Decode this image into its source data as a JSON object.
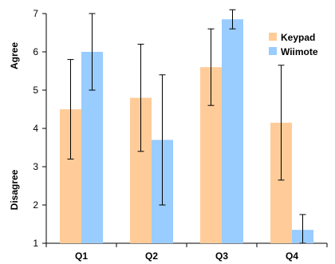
{
  "chart_data": {
    "type": "bar",
    "categories": [
      "Q1",
      "Q2",
      "Q3",
      "Q4"
    ],
    "series": [
      {
        "name": "Keypad",
        "color": "#ffcc99",
        "values": [
          4.5,
          4.8,
          5.6,
          4.15
        ],
        "error_low": [
          3.2,
          3.4,
          4.6,
          2.65
        ],
        "error_high": [
          5.8,
          6.2,
          6.6,
          5.65
        ]
      },
      {
        "name": "Wiimote",
        "color": "#99ccff",
        "values": [
          6.0,
          3.7,
          6.85,
          1.35
        ],
        "error_low": [
          5.0,
          2.0,
          6.6,
          1.0
        ],
        "error_high": [
          7.0,
          5.4,
          7.1,
          1.75
        ]
      }
    ],
    "ylim": [
      1,
      7
    ],
    "yticks": [
      "1",
      "2",
      "3",
      "4",
      "5",
      "6",
      "7"
    ],
    "ylabel_top": "Agree",
    "ylabel_bottom": "Disagree",
    "grid": false,
    "legend_position": "top-right"
  }
}
